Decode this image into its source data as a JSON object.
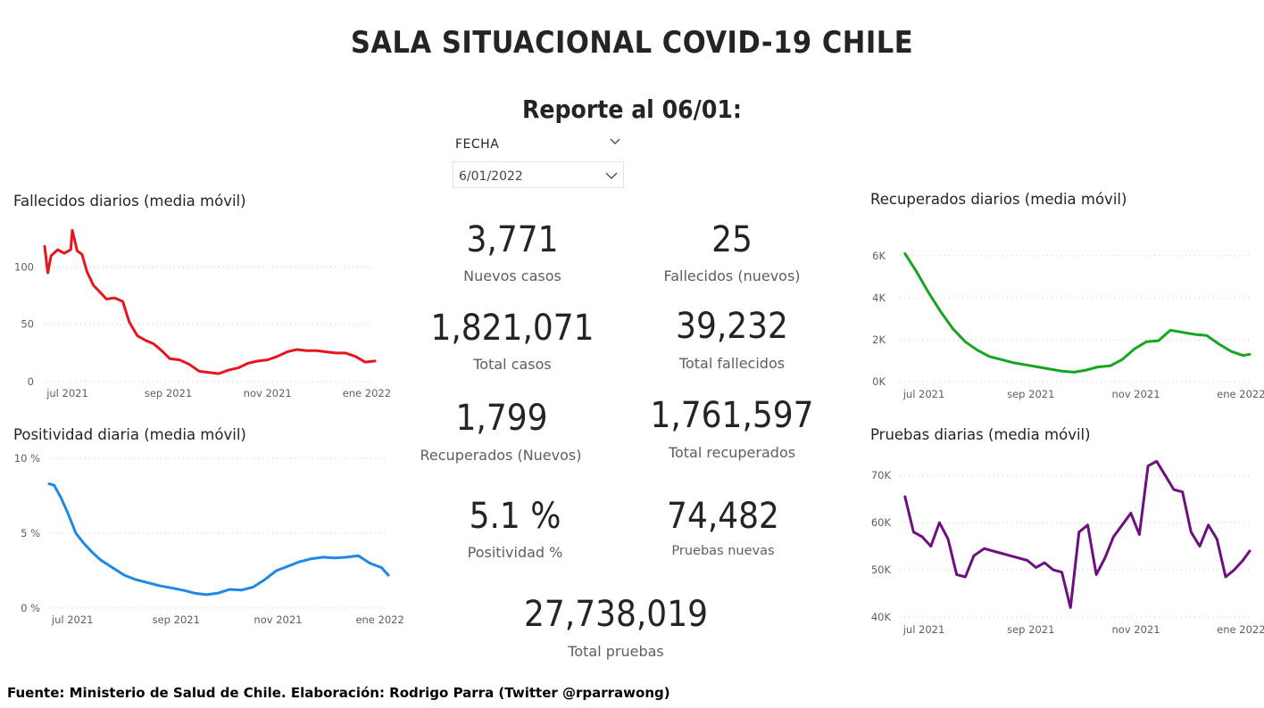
{
  "header": {
    "title": "SALA SITUACIONAL COVID-19 CHILE",
    "subtitle": "Reporte al 06/01:"
  },
  "filter": {
    "label": "FECHA",
    "value": "6/01/2022"
  },
  "kpis": [
    {
      "value": "3,771",
      "label": "Nuevos casos"
    },
    {
      "value": "25",
      "label": "Fallecidos (nuevos)"
    },
    {
      "value": "1,821,071",
      "label": "Total casos"
    },
    {
      "value": "39,232",
      "label": "Total fallecidos"
    },
    {
      "value": "1,799",
      "label": "Recuperados (Nuevos)"
    },
    {
      "value": "1,761,597",
      "label": "Total recuperados"
    },
    {
      "value": "5.1 %",
      "label": "Positividad %"
    },
    {
      "value": "74,482",
      "label": "Pruebas nuevas"
    },
    {
      "value": "27,738,019",
      "label": "Total pruebas"
    }
  ],
  "footer": "Fuente: Ministerio de Salud de Chile. Elaboración: Rodrigo Parra (Twitter @rparrawong)",
  "chart_data": [
    {
      "id": "fallecidos",
      "type": "line",
      "title": "Fallecidos diarios (media móvil)",
      "color": "#e8161c",
      "x_domain": [
        "2021-06-17",
        "2022-01-06"
      ],
      "ylim": [
        0,
        140
      ],
      "yticks": [
        0,
        50,
        100
      ],
      "ytick_labels": [
        "0",
        "50",
        "100"
      ],
      "xticks": [
        "2021-07-01",
        "2021-09-01",
        "2021-11-01",
        "2022-01-01"
      ],
      "xtick_labels": [
        "jul 2021",
        "sep 2021",
        "nov 2021",
        "ene 2022"
      ],
      "grid": true,
      "x": [
        "2021-06-17",
        "2021-06-19",
        "2021-06-21",
        "2021-06-25",
        "2021-06-29",
        "2021-07-03",
        "2021-07-04",
        "2021-07-07",
        "2021-07-10",
        "2021-07-13",
        "2021-07-17",
        "2021-07-21",
        "2021-07-25",
        "2021-07-30",
        "2021-08-04",
        "2021-08-08",
        "2021-08-13",
        "2021-08-18",
        "2021-08-23",
        "2021-08-28",
        "2021-09-02",
        "2021-09-08",
        "2021-09-14",
        "2021-09-20",
        "2021-09-26",
        "2021-10-02",
        "2021-10-08",
        "2021-10-14",
        "2021-10-20",
        "2021-10-26",
        "2021-11-01",
        "2021-11-07",
        "2021-11-13",
        "2021-11-19",
        "2021-11-25",
        "2021-12-01",
        "2021-12-07",
        "2021-12-13",
        "2021-12-19",
        "2021-12-25",
        "2021-12-31",
        "2022-01-06"
      ],
      "values": [
        118,
        95,
        110,
        115,
        112,
        115,
        132,
        114,
        111,
        96,
        84,
        78,
        72,
        73,
        70,
        52,
        40,
        36,
        33,
        27,
        20,
        19,
        15,
        9,
        8,
        7,
        10,
        12,
        16,
        18,
        19,
        22,
        26,
        28,
        27,
        27,
        26,
        25,
        25,
        22,
        17,
        18
      ]
    },
    {
      "id": "positividad",
      "type": "line",
      "title": "Positividad diaria (media móvil)",
      "color": "#1e88e5",
      "x_domain": [
        "2021-06-17",
        "2022-01-06"
      ],
      "ylim": [
        0,
        10
      ],
      "yticks": [
        0,
        5,
        10
      ],
      "ytick_labels": [
        "0 %",
        "5 %",
        "10 %"
      ],
      "xticks": [
        "2021-07-01",
        "2021-09-01",
        "2021-11-01",
        "2022-01-01"
      ],
      "xtick_labels": [
        "jul 2021",
        "sep 2021",
        "nov 2021",
        "ene 2022"
      ],
      "grid": true,
      "x": [
        "2021-06-17",
        "2021-06-20",
        "2021-06-24",
        "2021-06-28",
        "2021-07-03",
        "2021-07-08",
        "2021-07-13",
        "2021-07-18",
        "2021-07-25",
        "2021-08-01",
        "2021-08-08",
        "2021-08-15",
        "2021-08-22",
        "2021-08-29",
        "2021-09-05",
        "2021-09-12",
        "2021-09-19",
        "2021-09-26",
        "2021-10-03",
        "2021-10-10",
        "2021-10-17",
        "2021-10-24",
        "2021-10-31",
        "2021-11-07",
        "2021-11-14",
        "2021-11-21",
        "2021-11-28",
        "2021-12-05",
        "2021-12-12",
        "2021-12-19",
        "2021-12-26",
        "2022-01-02",
        "2022-01-06"
      ],
      "values": [
        8.3,
        8.2,
        7.4,
        6.4,
        5.0,
        4.3,
        3.7,
        3.2,
        2.7,
        2.2,
        1.9,
        1.7,
        1.5,
        1.35,
        1.2,
        1.0,
        0.9,
        1.0,
        1.25,
        1.2,
        1.4,
        1.9,
        2.5,
        2.8,
        3.1,
        3.3,
        3.4,
        3.35,
        3.4,
        3.5,
        3.0,
        2.7,
        2.2
      ]
    },
    {
      "id": "recuperados",
      "type": "line",
      "title": "Recuperados diarios (media móvil)",
      "color": "#16a51f",
      "x_domain": [
        "2021-06-17",
        "2022-01-06"
      ],
      "ylim": [
        0,
        6500
      ],
      "yticks": [
        0,
        2000,
        4000,
        6000
      ],
      "ytick_labels": [
        "0K",
        "2K",
        "4K",
        "6K"
      ],
      "xticks": [
        "2021-07-01",
        "2021-09-01",
        "2021-11-01",
        "2022-01-01"
      ],
      "xtick_labels": [
        "jul 2021",
        "sep 2021",
        "nov 2021",
        "ene 2022"
      ],
      "grid": true,
      "x": [
        "2021-06-20",
        "2021-06-27",
        "2021-07-04",
        "2021-07-11",
        "2021-07-18",
        "2021-07-25",
        "2021-08-01",
        "2021-08-08",
        "2021-08-15",
        "2021-08-22",
        "2021-08-29",
        "2021-09-05",
        "2021-09-12",
        "2021-09-19",
        "2021-09-26",
        "2021-10-03",
        "2021-10-10",
        "2021-10-17",
        "2021-10-24",
        "2021-10-31",
        "2021-11-07",
        "2021-11-14",
        "2021-11-21",
        "2021-11-28",
        "2021-12-05",
        "2021-12-12",
        "2021-12-19",
        "2021-12-26",
        "2022-01-02",
        "2022-01-06"
      ],
      "values": [
        6100,
        5200,
        4200,
        3300,
        2500,
        1900,
        1500,
        1200,
        1050,
        900,
        800,
        700,
        600,
        500,
        450,
        550,
        700,
        750,
        1050,
        1550,
        1900,
        1950,
        2450,
        2350,
        2250,
        2200,
        1800,
        1450,
        1250,
        1300
      ]
    },
    {
      "id": "pruebas",
      "type": "line",
      "title": "Pruebas diarias (media móvil)",
      "color": "#6d0f7e",
      "x_domain": [
        "2021-06-17",
        "2022-01-06"
      ],
      "ylim": [
        40000,
        74000
      ],
      "yticks": [
        40000,
        50000,
        60000,
        70000
      ],
      "ytick_labels": [
        "40K",
        "50K",
        "60K",
        "70K"
      ],
      "xticks": [
        "2021-07-01",
        "2021-09-01",
        "2021-11-01",
        "2022-01-01"
      ],
      "xtick_labels": [
        "jul 2021",
        "sep 2021",
        "nov 2021",
        "ene 2022"
      ],
      "grid": true,
      "x": [
        "2021-06-20",
        "2021-06-25",
        "2021-06-30",
        "2021-07-05",
        "2021-07-10",
        "2021-07-15",
        "2021-07-20",
        "2021-07-25",
        "2021-07-30",
        "2021-08-05",
        "2021-08-10",
        "2021-08-15",
        "2021-08-20",
        "2021-08-25",
        "2021-08-30",
        "2021-09-04",
        "2021-09-09",
        "2021-09-14",
        "2021-09-19",
        "2021-09-24",
        "2021-09-29",
        "2021-10-04",
        "2021-10-09",
        "2021-10-14",
        "2021-10-19",
        "2021-10-24",
        "2021-10-29",
        "2021-11-03",
        "2021-11-08",
        "2021-11-13",
        "2021-11-18",
        "2021-11-23",
        "2021-11-28",
        "2021-12-03",
        "2021-12-08",
        "2021-12-13",
        "2021-12-18",
        "2021-12-23",
        "2021-12-28",
        "2022-01-02",
        "2022-01-06"
      ],
      "values": [
        65500,
        58000,
        57000,
        55000,
        60000,
        56500,
        49000,
        48500,
        53000,
        54500,
        54000,
        53500,
        53000,
        52500,
        52000,
        50500,
        51500,
        50000,
        49500,
        42000,
        58000,
        59500,
        49000,
        52500,
        57000,
        59500,
        62000,
        57500,
        72000,
        73000,
        70000,
        67000,
        66500,
        58000,
        55000,
        59500,
        56500,
        48500,
        50000,
        52000,
        54000
      ]
    }
  ]
}
